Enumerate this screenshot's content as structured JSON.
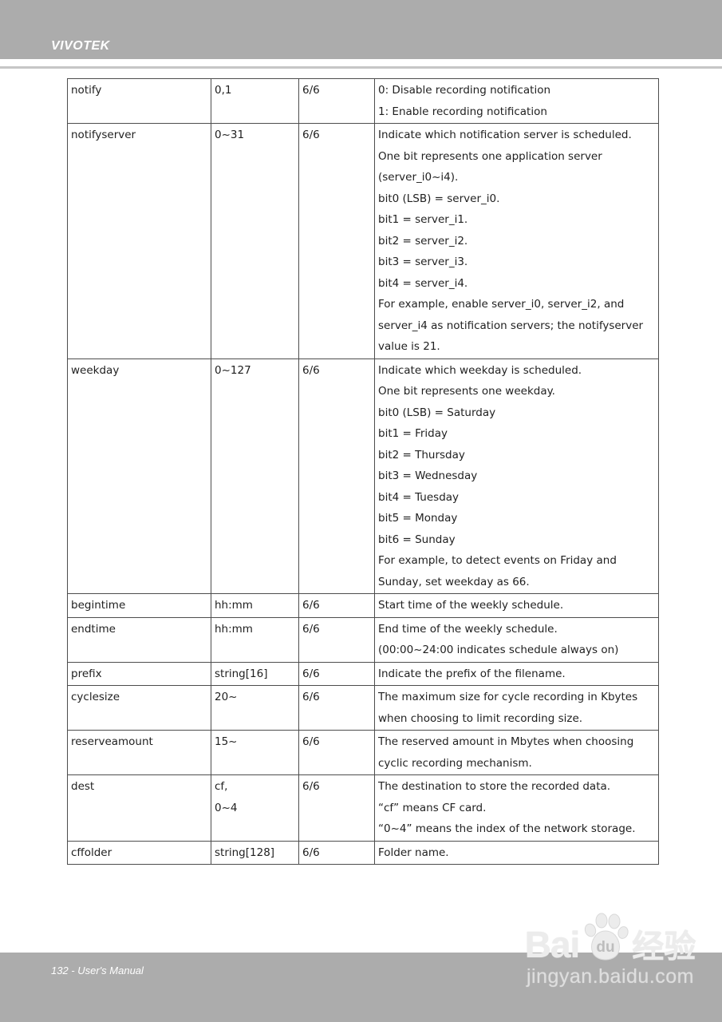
{
  "header": {
    "brand": "VIVOTEK"
  },
  "footer": {
    "page_label": "132 - User's Manual"
  },
  "watermark": {
    "part1": "Bai",
    "paw_icon": "paw-icon",
    "paw_label": "du",
    "part2": "经验",
    "domain": "jingyan.baidu.com"
  },
  "colors": {
    "header_bar": "#acacac",
    "footer_bar": "#acacac",
    "divider": "#c6c6c6",
    "table_border": "#4d4d4d",
    "text": "#1f1f1f",
    "watermark": "#ececec"
  },
  "table": {
    "rows": [
      {
        "name": "notify",
        "value": [
          "0,1"
        ],
        "perm": "6/6",
        "desc": [
          "0: Disable recording notification",
          "1: Enable recording notification"
        ]
      },
      {
        "name": "notifyserver",
        "value": [
          "0~31"
        ],
        "perm": "6/6",
        "desc": [
          "Indicate which notification server is scheduled.",
          "One bit represents one application server",
          "(server_i0~i4).",
          "bit0 (LSB) = server_i0.",
          "bit1 = server_i1.",
          "bit2 = server_i2.",
          "bit3 = server_i3.",
          "bit4 = server_i4.",
          "For example, enable server_i0, server_i2, and",
          "server_i4 as notification servers; the notifyserver",
          "value is 21."
        ]
      },
      {
        "name": "weekday",
        "value": [
          "0~127"
        ],
        "perm": "6/6",
        "desc": [
          "Indicate which weekday is scheduled.",
          "One bit represents one weekday.",
          "bit0 (LSB) = Saturday",
          "bit1 = Friday",
          "bit2 = Thursday",
          "bit3 = Wednesday",
          "bit4 = Tuesday",
          "bit5 = Monday",
          "bit6 = Sunday",
          "For example, to detect events on Friday and",
          "Sunday, set weekday as 66."
        ]
      },
      {
        "name": "begintime",
        "value": [
          "hh:mm"
        ],
        "perm": "6/6",
        "desc": [
          "Start time of the weekly schedule."
        ]
      },
      {
        "name": "endtime",
        "value": [
          "hh:mm"
        ],
        "perm": "6/6",
        "desc": [
          "End time of the weekly schedule.",
          "(00:00~24:00 indicates schedule always on)"
        ]
      },
      {
        "name": "prefix",
        "value": [
          "string[16]"
        ],
        "perm": "6/6",
        "desc": [
          "Indicate the prefix of the filename."
        ]
      },
      {
        "name": "cyclesize",
        "value": [
          "20~"
        ],
        "perm": "6/6",
        "desc": [
          "The maximum size for cycle recording in Kbytes",
          "when choosing to limit recording size."
        ]
      },
      {
        "name": "reserveamount",
        "value": [
          "15~"
        ],
        "perm": "6/6",
        "desc": [
          "The reserved amount in Mbytes when choosing",
          "cyclic recording mechanism."
        ]
      },
      {
        "name": "dest",
        "value": [
          "cf,",
          "0~4"
        ],
        "perm": "6/6",
        "desc": [
          "The destination to store the recorded data.",
          "“cf” means CF card.",
          "“0~4” means the index of the network storage."
        ]
      },
      {
        "name": "cffolder",
        "value": [
          "string[128]"
        ],
        "perm": "6/6",
        "desc": [
          "Folder name."
        ]
      }
    ]
  }
}
